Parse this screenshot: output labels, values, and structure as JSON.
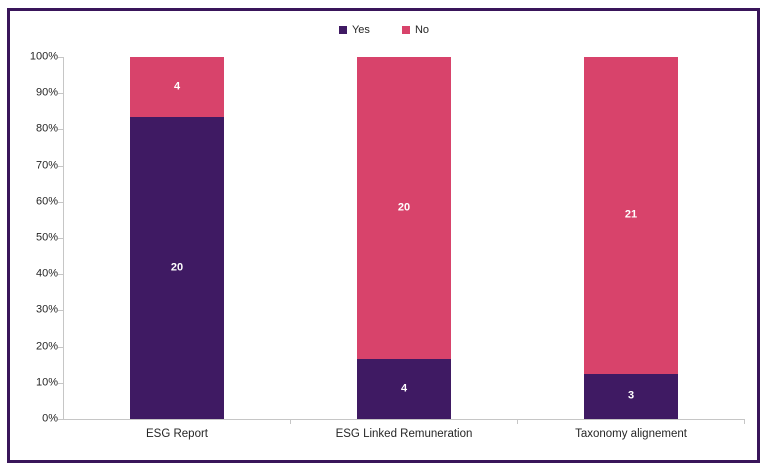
{
  "frame": {
    "border_color": "#39155A",
    "background": "#FFFFFF"
  },
  "axis": {
    "line_color": "#C6C6C6",
    "label_color": "#262626"
  },
  "chart_data": {
    "type": "bar",
    "subtype": "100-percent-stacked-column",
    "title": "",
    "categories": [
      "ESG Report",
      "ESG Linked Remuneration",
      "Taxonomy alignement"
    ],
    "series": [
      {
        "name": "Yes",
        "color": "#3F1A63",
        "values": [
          20,
          4,
          3
        ]
      },
      {
        "name": "No",
        "color": "#D8436B",
        "values": [
          4,
          20,
          21
        ]
      }
    ],
    "value_labels_shown": true,
    "value_label_color": "#FFFFFF",
    "y_axis": {
      "min": 0,
      "max": 100,
      "unit": "%",
      "tick_labels": [
        "0%",
        "10%",
        "20%",
        "30%",
        "40%",
        "50%",
        "60%",
        "70%",
        "80%",
        "90%",
        "100%"
      ]
    },
    "legend_position": "top-center",
    "grid": false
  }
}
